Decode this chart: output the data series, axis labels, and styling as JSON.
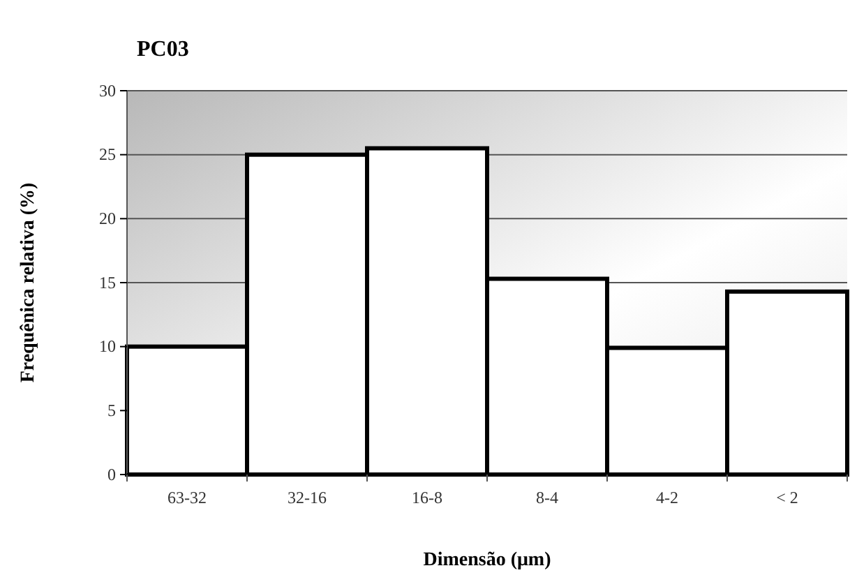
{
  "chart_data": {
    "type": "bar",
    "title": "PC03",
    "xlabel": "Dimensão (μm)",
    "ylabel": "Frequênica relativa (%)",
    "categories": [
      "63-32",
      "32-16",
      "16-8",
      "8-4",
      "4-2",
      "< 2"
    ],
    "values": [
      10,
      25,
      25.5,
      15.3,
      9.9,
      14.3
    ],
    "color": "#ffffff",
    "ylim": [
      0,
      30
    ],
    "yticks": [
      0,
      5,
      10,
      15,
      20,
      25,
      30
    ],
    "grid": "y"
  }
}
